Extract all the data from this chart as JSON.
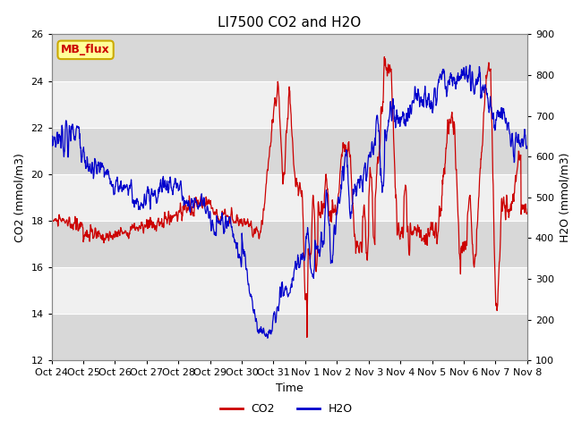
{
  "title": "LI7500 CO2 and H2O",
  "xlabel": "Time",
  "ylabel_left": "CO2 (mmol/m3)",
  "ylabel_right": "H2O (mmol/m3)",
  "ylim_left": [
    12,
    26
  ],
  "ylim_right": [
    100,
    900
  ],
  "yticks_left": [
    12,
    14,
    16,
    18,
    20,
    22,
    24,
    26
  ],
  "yticks_right": [
    100,
    200,
    300,
    400,
    500,
    600,
    700,
    800,
    900
  ],
  "co2_color": "#cc0000",
  "h2o_color": "#0000cc",
  "fig_bg_color": "#ffffff",
  "plot_bg_color": "#e8e8e8",
  "band_light": "#f0f0f0",
  "band_dark": "#d8d8d8",
  "grid_color": "#ffffff",
  "annotation_text": "MB_flux",
  "annotation_bg": "#ffff99",
  "annotation_border": "#ccaa00",
  "title_fontsize": 11,
  "axis_label_fontsize": 9,
  "tick_fontsize": 8,
  "legend_fontsize": 9,
  "n_points": 1500,
  "seed": 42
}
